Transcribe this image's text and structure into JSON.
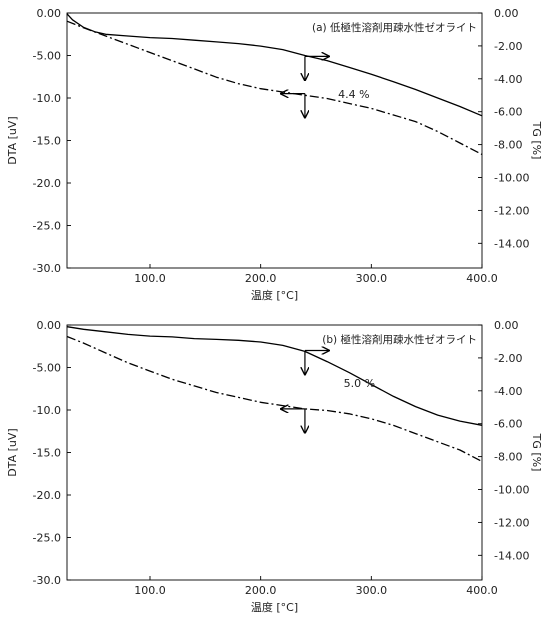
{
  "figure": {
    "background": "#ffffff",
    "ink": "#000000",
    "text": "#222222"
  },
  "chart_data": [
    {
      "type": "line",
      "panel_label": "(a) 低極性溶剤用疎水性ゼオライト",
      "xlabel": "温度 [°C]",
      "ylabel_left": "DTA [uV]",
      "ylabel_right": "TG [%]",
      "xlim": [
        25,
        400
      ],
      "ylim_left": [
        -30,
        0
      ],
      "ylim_right": [
        -15.5,
        0
      ],
      "x_ticks": [
        "100.0",
        "200.0",
        "300.0",
        "400.0"
      ],
      "x_tick_values": [
        100,
        200,
        300,
        400
      ],
      "y_ticks_left": [
        "0.00",
        "-5.00",
        "-10.0",
        "-15.0",
        "-20.0",
        "-25.0",
        "-30.0"
      ],
      "y_tick_values_left": [
        0,
        -5,
        -10,
        -15,
        -20,
        -25,
        -30
      ],
      "y_ticks_right": [
        "0.00",
        "-2.00",
        "-4.00",
        "-6.00",
        "-8.00",
        "-10.00",
        "-12.00",
        "-14.00"
      ],
      "y_tick_values_right": [
        0,
        -2,
        -4,
        -6,
        -8,
        -10,
        -12,
        -14
      ],
      "annotation": "4.4 %",
      "annotation_at": [
        270,
        -9.5
      ],
      "series": [
        {
          "axis": "left",
          "style": "solid",
          "x": [
            25,
            30,
            40,
            50,
            60,
            80,
            100,
            120,
            140,
            160,
            180,
            200,
            220,
            240,
            260,
            280,
            300,
            320,
            340,
            360,
            380,
            400
          ],
          "y": [
            -0.1,
            -0.8,
            -1.7,
            -2.2,
            -2.5,
            -2.7,
            -2.9,
            -3.0,
            -3.2,
            -3.4,
            -3.6,
            -3.9,
            -4.3,
            -5.0,
            -5.6,
            -6.4,
            -7.2,
            -8.1,
            -9.0,
            -10.0,
            -11.0,
            -12.1
          ]
        },
        {
          "axis": "right",
          "style": "dash-dot",
          "x": [
            25,
            40,
            60,
            80,
            100,
            120,
            140,
            160,
            180,
            200,
            220,
            240,
            260,
            280,
            300,
            320,
            340,
            360,
            380,
            400
          ],
          "y": [
            -0.5,
            -0.9,
            -1.4,
            -1.9,
            -2.4,
            -2.9,
            -3.4,
            -3.9,
            -4.3,
            -4.6,
            -4.8,
            -5.0,
            -5.2,
            -5.5,
            -5.8,
            -6.2,
            -6.6,
            -7.2,
            -7.9,
            -8.6
          ]
        }
      ],
      "arrow_markers": [
        {
          "x": 240,
          "y": -5.1,
          "axis": "left",
          "pointing": [
            "right",
            "down"
          ]
        },
        {
          "x": 240,
          "y": -4.9,
          "axis": "right",
          "pointing": [
            "left",
            "down"
          ]
        }
      ]
    },
    {
      "type": "line",
      "panel_label": "(b) 極性溶剤用疎水性ゼオライト",
      "xlabel": "温度 [°C]",
      "ylabel_left": "DTA [uV]",
      "ylabel_right": "TG [%]",
      "xlim": [
        25,
        400
      ],
      "ylim_left": [
        -30,
        0
      ],
      "ylim_right": [
        -15.5,
        0
      ],
      "x_ticks": [
        "100.0",
        "200.0",
        "300.0",
        "400.0"
      ],
      "x_tick_values": [
        100,
        200,
        300,
        400
      ],
      "y_ticks_left": [
        "0.00",
        "-5.00",
        "-10.0",
        "-15.0",
        "-20.0",
        "-25.0",
        "-30.0"
      ],
      "y_tick_values_left": [
        0,
        -5,
        -10,
        -15,
        -20,
        -25,
        -30
      ],
      "y_ticks_right": [
        "0.00",
        "-2.00",
        "-4.00",
        "-6.00",
        "-8.00",
        "-10.00",
        "-12.00",
        "-14.00"
      ],
      "y_tick_values_right": [
        0,
        -2,
        -4,
        -6,
        -8,
        -10,
        -12,
        -14
      ],
      "annotation": "5.0 %",
      "annotation_at": [
        275,
        -6.8
      ],
      "series": [
        {
          "axis": "left",
          "style": "solid",
          "x": [
            25,
            40,
            60,
            80,
            100,
            120,
            140,
            160,
            180,
            200,
            220,
            240,
            260,
            280,
            300,
            320,
            340,
            360,
            380,
            400
          ],
          "y": [
            -0.2,
            -0.5,
            -0.8,
            -1.1,
            -1.3,
            -1.4,
            -1.6,
            -1.7,
            -1.8,
            -2.0,
            -2.4,
            -3.1,
            -4.3,
            -5.6,
            -7.0,
            -8.4,
            -9.6,
            -10.6,
            -11.3,
            -11.8
          ]
        },
        {
          "axis": "right",
          "style": "dash-dot",
          "x": [
            25,
            40,
            60,
            80,
            100,
            120,
            140,
            160,
            180,
            200,
            220,
            240,
            260,
            280,
            300,
            320,
            340,
            360,
            380,
            400
          ],
          "y": [
            -0.7,
            -1.1,
            -1.7,
            -2.3,
            -2.8,
            -3.3,
            -3.7,
            -4.1,
            -4.4,
            -4.7,
            -4.9,
            -5.1,
            -5.2,
            -5.4,
            -5.7,
            -6.1,
            -6.6,
            -7.1,
            -7.6,
            -8.3
          ]
        }
      ],
      "arrow_markers": [
        {
          "x": 240,
          "y": -3.0,
          "axis": "left",
          "pointing": [
            "right",
            "down"
          ]
        },
        {
          "x": 240,
          "y": -5.1,
          "axis": "right",
          "pointing": [
            "left",
            "down"
          ]
        }
      ]
    }
  ]
}
